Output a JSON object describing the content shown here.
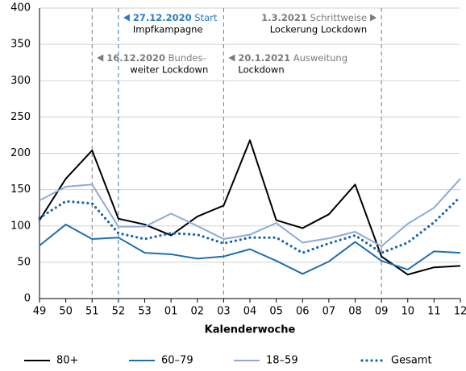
{
  "chart_data": {
    "type": "line",
    "x_label": "Kalenderwoche",
    "categories": [
      "49",
      "50",
      "51",
      "52",
      "53",
      "01",
      "02",
      "03",
      "04",
      "05",
      "06",
      "07",
      "08",
      "09",
      "10",
      "11",
      "12"
    ],
    "series": [
      {
        "name": "80+",
        "color": "#000000",
        "style": "solid",
        "values": [
          108,
          165,
          204,
          110,
          102,
          87,
          113,
          128,
          218,
          108,
          97,
          116,
          157,
          58,
          33,
          43,
          45
        ]
      },
      {
        "name": "60–79",
        "color": "#1f6fad",
        "style": "solid",
        "values": [
          73,
          102,
          82,
          84,
          63,
          61,
          55,
          58,
          68,
          52,
          34,
          51,
          78,
          52,
          40,
          65,
          63
        ]
      },
      {
        "name": "18–59",
        "color": "#8eaad6",
        "style": "solid",
        "values": [
          135,
          154,
          157,
          99,
          99,
          117,
          100,
          82,
          88,
          104,
          77,
          83,
          92,
          72,
          103,
          125,
          165
        ]
      },
      {
        "name": "Gesamt",
        "color": "#1565b0",
        "style": "dotted",
        "values": [
          111,
          134,
          131,
          90,
          82,
          90,
          88,
          76,
          84,
          84,
          63,
          76,
          87,
          63,
          77,
          105,
          140
        ]
      }
    ],
    "ylim": [
      0,
      400
    ],
    "yticks": [
      0,
      50,
      100,
      150,
      200,
      250,
      300,
      350,
      400
    ],
    "grid": true,
    "annotations": [
      {
        "category_index": 3,
        "color": "#2b7bc4",
        "date": "27.12.2020",
        "lines": [
          "Start",
          "Impfkampagne"
        ]
      },
      {
        "category_index": 2,
        "color": "#7a7a7a",
        "date": "16.12.2020",
        "lines": [
          "Bundes-",
          "weiter Lockdown"
        ]
      },
      {
        "category_index": 7,
        "color": "#7a7a7a",
        "date": "20.1.2021",
        "lines": [
          "Ausweitung",
          "Lockdown"
        ]
      },
      {
        "category_index": 13,
        "color": "#7a7a7a",
        "date": "1.3.2021",
        "lines": [
          "Schrittweise",
          "Lockerung Lockdown"
        ]
      }
    ]
  }
}
